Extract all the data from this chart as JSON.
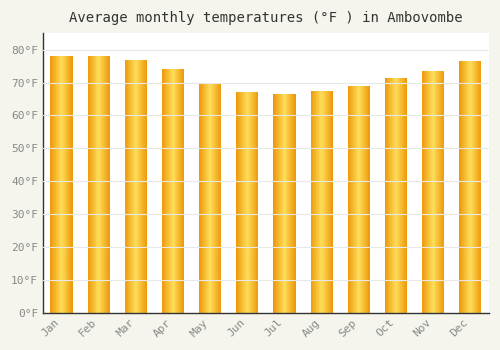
{
  "title": "Average monthly temperatures (°F ) in Ambovombe",
  "months": [
    "Jan",
    "Feb",
    "Mar",
    "Apr",
    "May",
    "Jun",
    "Jul",
    "Aug",
    "Sep",
    "Oct",
    "Nov",
    "Dec"
  ],
  "values": [
    78,
    78,
    77,
    74,
    70,
    67,
    66.5,
    67.5,
    69,
    71.5,
    73.5,
    76.5
  ],
  "bar_color_center": "#FFD966",
  "bar_color_edge": "#E8960A",
  "ylim": [
    0,
    85
  ],
  "yticks": [
    0,
    10,
    20,
    30,
    40,
    50,
    60,
    70,
    80
  ],
  "ytick_labels": [
    "0°F",
    "10°F",
    "20°F",
    "30°F",
    "40°F",
    "50°F",
    "60°F",
    "70°F",
    "80°F"
  ],
  "background_color": "#f5f5ee",
  "plot_bg_color": "#ffffff",
  "grid_color": "#e8e8e8",
  "title_fontsize": 10,
  "tick_fontsize": 8,
  "bar_width": 0.6,
  "n_gradient_strips": 30
}
